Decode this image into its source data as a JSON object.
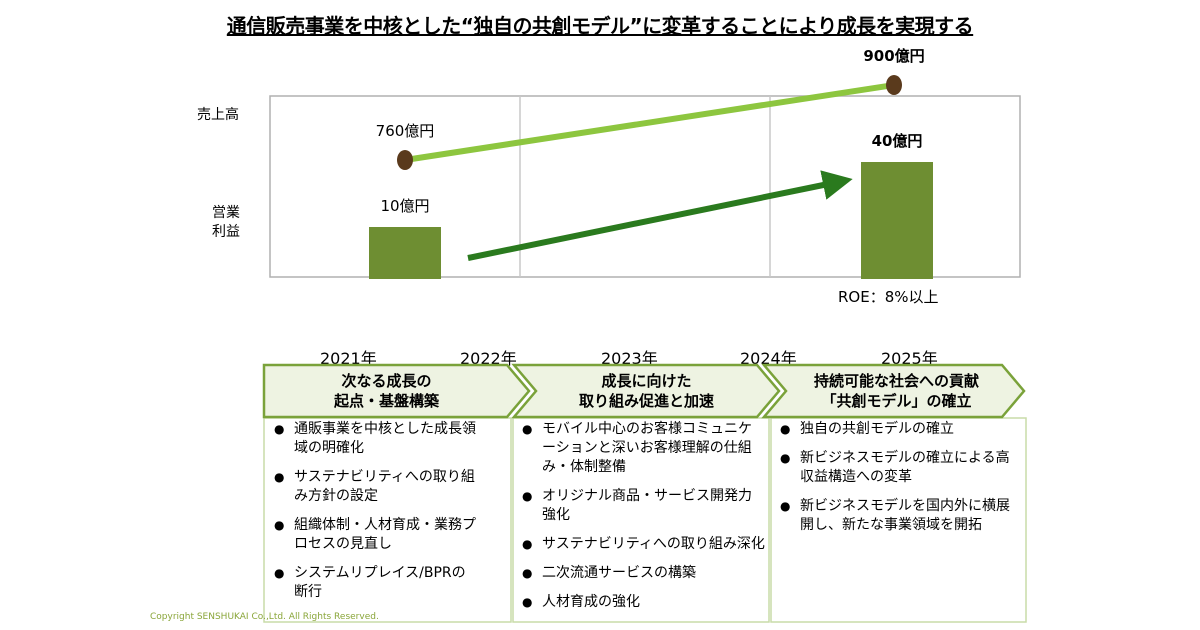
{
  "title": "通信販売事業を中核とした“独自の共創モデル”に変革することにより成長を実現する",
  "axis_labels": {
    "sales": "売上高",
    "operating_profit_line1": "営業",
    "operating_profit_line2": "利益"
  },
  "chart_data": {
    "type": "bar",
    "categories": [
      "2021年",
      "2025年"
    ],
    "series": [
      {
        "name": "売上高",
        "values": [
          760,
          900
        ],
        "labels": [
          "760億円",
          "900億円"
        ]
      },
      {
        "name": "営業利益",
        "values": [
          10,
          40
        ],
        "labels": [
          "10億円",
          "40億円"
        ]
      }
    ]
  },
  "roe": "ROE：8%以上",
  "years": [
    "2021年",
    "2022年",
    "2023年",
    "2024年",
    "2025年"
  ],
  "phases": [
    {
      "line1": "次なる成長の",
      "line2": "起点・基盤構築",
      "items": [
        "通販事業を中核とした成長領域の明確化",
        "サステナビリティへの取り組み方針の設定",
        "組織体制・人材育成・業務プロセスの見直し",
        "システムリプレイス/BPRの断行"
      ]
    },
    {
      "line1": "成長に向けた",
      "line2": "取り組み促進と加速",
      "items": [
        "モバイル中心のお客様コミュニケーションと深いお客様理解の仕組み・体制整備",
        "オリジナル商品・サービス開発力強化",
        "サステナビリティへの取り組み深化",
        "二次流通サービスの構築",
        "人材育成の強化"
      ]
    },
    {
      "line1": "持続可能な社会への貢献",
      "line2": "「共創モデル」の確立",
      "items": [
        "独自の共創モデルの確立",
        "新ビジネスモデルの確立による高収益構造への変革",
        "新ビジネスモデルを国内外に横展開し、新たな事業領域を開拓"
      ]
    }
  ],
  "copyright": "Copyright SENSHUKAI Co.,Ltd. All Rights Reserved.",
  "colors": {
    "bar": "#6e8e32",
    "sales_line": "#8dc63f",
    "profit_arrow": "#2a7a1e",
    "marker": "#5a3a1c",
    "chevron_fill": "#eef3e2",
    "chevron_stroke": "#7aa23a",
    "panel_border": "#c9dca8"
  }
}
